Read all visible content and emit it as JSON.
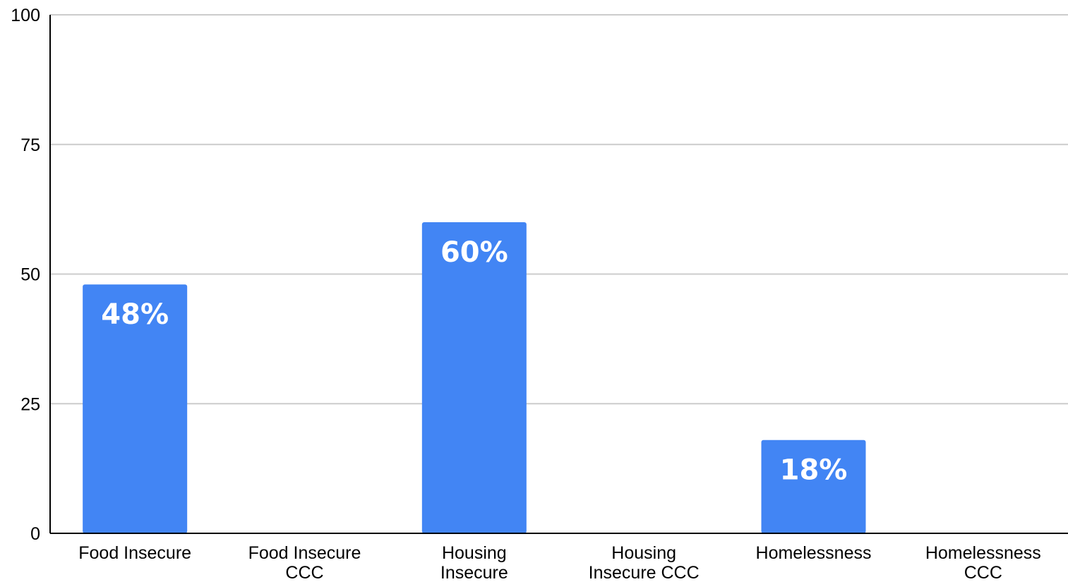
{
  "chart_data": {
    "type": "bar",
    "title": "",
    "xlabel": "",
    "ylabel": "",
    "categories": [
      [
        "Food Insecure"
      ],
      [
        "Food Insecure",
        "CCC"
      ],
      [
        "Housing",
        "Insecure"
      ],
      [
        "Housing",
        "Insecure CCC"
      ],
      [
        "Homelessness"
      ],
      [
        "Homelessness",
        "CCC"
      ]
    ],
    "values": [
      48,
      null,
      60,
      null,
      18,
      null
    ],
    "data_labels": [
      "48%",
      "",
      "60%",
      "",
      "18%",
      ""
    ],
    "ylim": [
      0,
      100
    ],
    "yticks": [
      0,
      25,
      50,
      75,
      100
    ],
    "grid": true,
    "legend": "none",
    "bar_color": "#4285f4"
  }
}
